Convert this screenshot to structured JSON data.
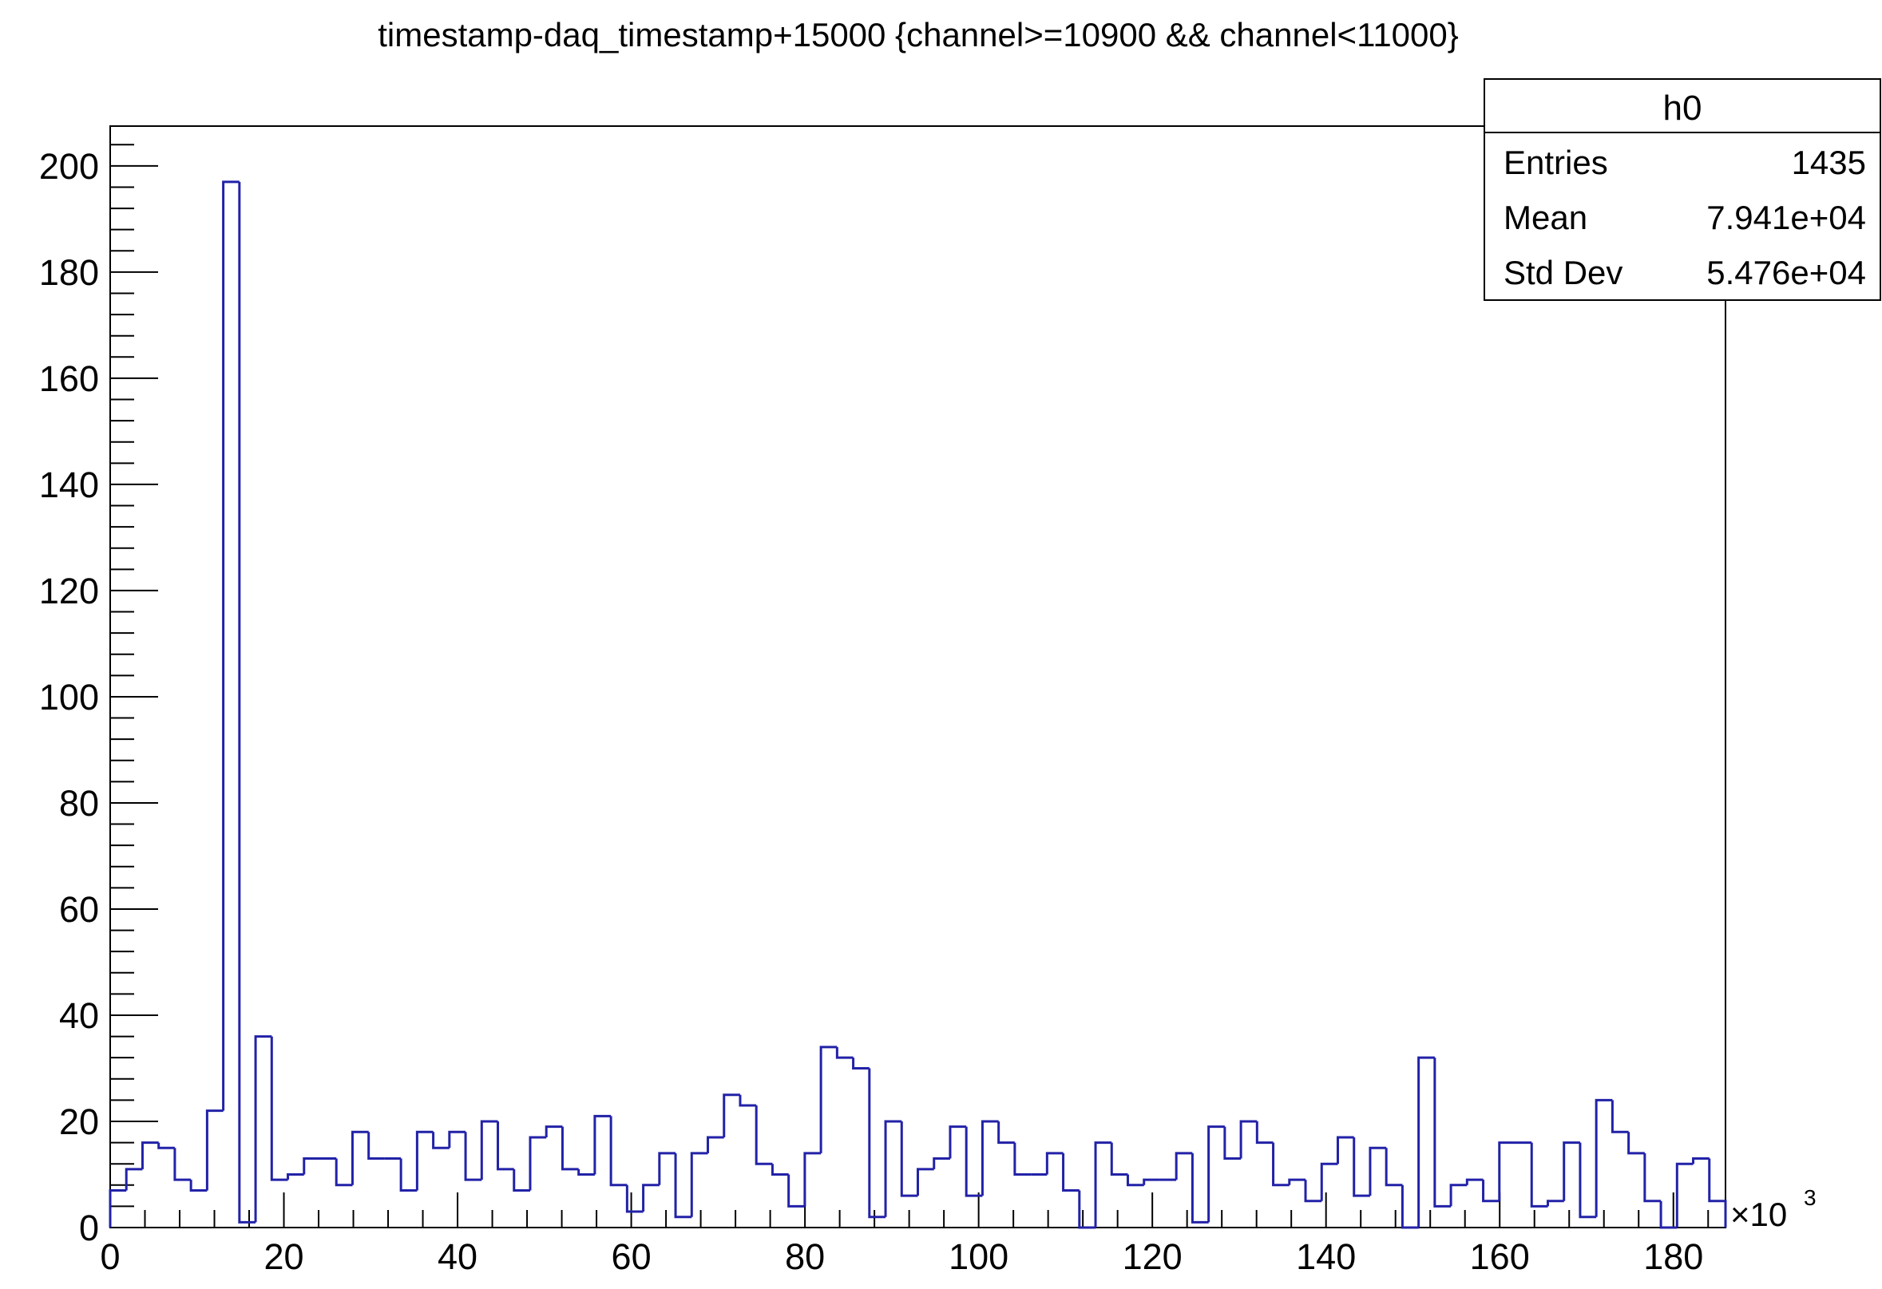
{
  "chart_data": {
    "type": "histogram",
    "title": "timestamp-daq_timestamp+15000 {channel>=10900 && channel<11000}",
    "color": "#2222a8",
    "bins": [
      0,
      1.86,
      3.72,
      5.58,
      7.44,
      9.3,
      11.16,
      13.02,
      14.88,
      16.74,
      18.6,
      20.46,
      22.32,
      24.18,
      26.04,
      27.9,
      29.76,
      31.62,
      33.48,
      35.34,
      37.2,
      39.06,
      40.92,
      42.78,
      44.64,
      46.5,
      48.36,
      50.22,
      52.08,
      53.94,
      55.8,
      57.66,
      59.52,
      61.38,
      63.24,
      65.1,
      66.96,
      68.82,
      70.68,
      72.54,
      74.4,
      76.26,
      78.12,
      79.98,
      81.84,
      83.7,
      85.56,
      87.42,
      89.28,
      91.14,
      93,
      94.86,
      96.72,
      98.58,
      100.44,
      102.3,
      104.16,
      106.02,
      107.88,
      109.74,
      111.6,
      113.46,
      115.32,
      117.18,
      119.04,
      120.9,
      122.76,
      124.62,
      126.48,
      128.34,
      130.2,
      132.06,
      133.92,
      135.78,
      137.64,
      139.5,
      141.36,
      143.22,
      145.08,
      146.94,
      148.8,
      150.66,
      152.52,
      154.38,
      156.24,
      158.1,
      159.96,
      161.82,
      163.68,
      165.54,
      167.4,
      169.26,
      171.12,
      172.98,
      174.84,
      176.7,
      178.56,
      180.42,
      182.28,
      184.14,
      186
    ],
    "values": [
      7,
      11,
      16,
      15,
      9,
      7,
      22,
      197,
      1,
      36,
      9,
      10,
      13,
      13,
      8,
      18,
      13,
      13,
      7,
      18,
      15,
      18,
      9,
      20,
      11,
      7,
      17,
      19,
      11,
      10,
      21,
      8,
      3,
      8,
      14,
      2,
      14,
      17,
      25,
      23,
      12,
      10,
      4,
      14,
      34,
      32,
      30,
      2,
      20,
      6,
      11,
      13,
      19,
      6,
      20,
      16,
      10,
      10,
      14,
      7,
      0,
      16,
      10,
      8,
      9,
      9,
      14,
      1,
      19,
      13,
      20,
      16,
      8,
      9,
      5,
      12,
      17,
      6,
      15,
      8,
      0,
      32,
      4,
      8,
      9,
      5,
      16,
      16,
      4,
      5,
      16,
      2,
      24,
      18,
      14,
      5,
      0,
      12,
      13,
      5
    ],
    "xlim": [
      0,
      186
    ],
    "ylim": [
      0,
      207.5
    ],
    "xticks": [
      0,
      20,
      40,
      60,
      80,
      100,
      120,
      140,
      160,
      180
    ],
    "yticks": [
      0,
      20,
      40,
      60,
      80,
      100,
      120,
      140,
      160,
      180,
      200
    ],
    "x_multiplier": "×10",
    "x_exponent": "3",
    "stats": {
      "name": "h0",
      "rows": [
        [
          "Entries",
          "1435"
        ],
        [
          "Mean",
          "7.941e+04"
        ],
        [
          "Std Dev",
          "5.476e+04"
        ]
      ]
    }
  }
}
